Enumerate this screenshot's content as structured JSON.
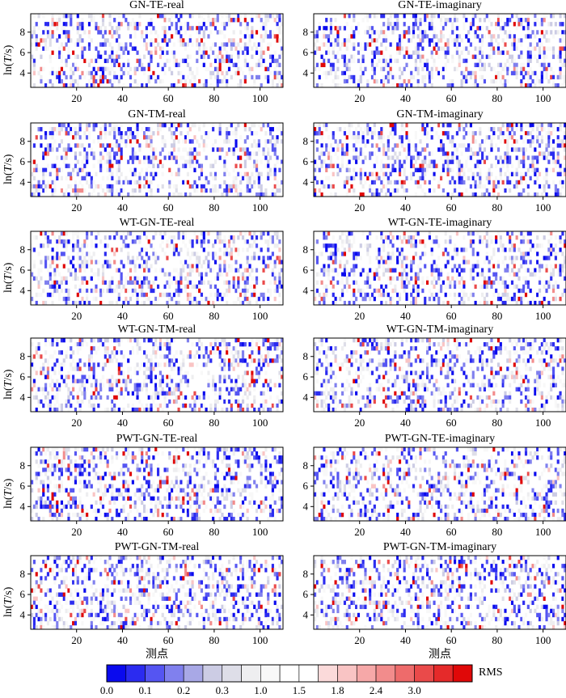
{
  "chart_data": [
    {
      "type": "heatmap",
      "title": "GN-TE-real",
      "xlim": [
        0,
        110
      ],
      "ylim": [
        2.6,
        9.8
      ],
      "xticks": [
        "20",
        "40",
        "60",
        "80",
        "100"
      ],
      "yticks": [
        "4",
        "6",
        "8"
      ],
      "ylabel": "ln(T/s)",
      "seed": 11
    },
    {
      "type": "heatmap",
      "title": "GN-TE-imaginary",
      "xlim": [
        0,
        110
      ],
      "ylim": [
        2.6,
        9.8
      ],
      "xticks": [
        "20",
        "40",
        "60",
        "80",
        "100"
      ],
      "yticks": [
        "4",
        "6",
        "8"
      ],
      "seed": 23
    },
    {
      "type": "heatmap",
      "title": "GN-TM-real",
      "xlim": [
        0,
        110
      ],
      "ylim": [
        2.6,
        9.8
      ],
      "xticks": [
        "20",
        "40",
        "60",
        "80",
        "100"
      ],
      "yticks": [
        "4",
        "6",
        "8"
      ],
      "ylabel": "ln(T/s)",
      "seed": 37
    },
    {
      "type": "heatmap",
      "title": "GN-TM-imaginary",
      "xlim": [
        0,
        110
      ],
      "ylim": [
        2.6,
        9.8
      ],
      "xticks": [
        "20",
        "40",
        "60",
        "80",
        "100"
      ],
      "yticks": [
        "4",
        "6",
        "8"
      ],
      "seed": 41
    },
    {
      "type": "heatmap",
      "title": "WT-GN-TE-real",
      "xlim": [
        0,
        110
      ],
      "ylim": [
        2.6,
        9.8
      ],
      "xticks": [
        "20",
        "40",
        "60",
        "80",
        "100"
      ],
      "yticks": [
        "4",
        "6",
        "8"
      ],
      "ylabel": "ln(T/s)",
      "seed": 53
    },
    {
      "type": "heatmap",
      "title": "WT-GN-TE-imaginary",
      "xlim": [
        0,
        110
      ],
      "ylim": [
        2.6,
        9.8
      ],
      "xticks": [
        "20",
        "40",
        "60",
        "80",
        "100"
      ],
      "yticks": [
        "4",
        "6",
        "8"
      ],
      "seed": 67
    },
    {
      "type": "heatmap",
      "title": "WT-GN-TM-real",
      "xlim": [
        0,
        110
      ],
      "ylim": [
        2.6,
        9.8
      ],
      "xticks": [
        "20",
        "40",
        "60",
        "80",
        "100"
      ],
      "yticks": [
        "4",
        "6",
        "8"
      ],
      "ylabel": "ln(T/s)",
      "seed": 71
    },
    {
      "type": "heatmap",
      "title": "WT-GN-TM-imaginary",
      "xlim": [
        0,
        110
      ],
      "ylim": [
        2.6,
        9.8
      ],
      "xticks": [
        "20",
        "40",
        "60",
        "80",
        "100"
      ],
      "yticks": [
        "4",
        "6",
        "8"
      ],
      "seed": 83
    },
    {
      "type": "heatmap",
      "title": "PWT-GN-TE-real",
      "xlim": [
        0,
        110
      ],
      "ylim": [
        2.6,
        9.8
      ],
      "xticks": [
        "20",
        "40",
        "60",
        "80",
        "100"
      ],
      "yticks": [
        "4",
        "6",
        "8"
      ],
      "ylabel": "ln(T/s)",
      "seed": 97
    },
    {
      "type": "heatmap",
      "title": "PWT-GN-TE-imaginary",
      "xlim": [
        0,
        110
      ],
      "ylim": [
        2.6,
        9.8
      ],
      "xticks": [
        "20",
        "40",
        "60",
        "80",
        "100"
      ],
      "yticks": [
        "4",
        "6",
        "8"
      ],
      "seed": 101
    },
    {
      "type": "heatmap",
      "title": "PWT-GN-TM-real",
      "xlim": [
        0,
        110
      ],
      "ylim": [
        2.6,
        9.8
      ],
      "xticks": [
        "20",
        "40",
        "60",
        "80",
        "100"
      ],
      "yticks": [
        "4",
        "6",
        "8"
      ],
      "ylabel": "ln(T/s)",
      "xlabel": "测点",
      "seed": 113
    },
    {
      "type": "heatmap",
      "title": "PWT-GN-TM-imaginary",
      "xlim": [
        0,
        110
      ],
      "ylim": [
        2.6,
        9.8
      ],
      "xticks": [
        "20",
        "40",
        "60",
        "80",
        "100"
      ],
      "yticks": [
        "4",
        "6",
        "8"
      ],
      "xlabel": "测点",
      "seed": 127
    }
  ],
  "colorbar": {
    "label": "RMS",
    "tick_labels": [
      "0.0",
      "0.1",
      "0.2",
      "0.3",
      "1.0",
      "1.5",
      "1.8",
      "2.4",
      "3.0"
    ],
    "colors": [
      "#0a0aee",
      "#2b2bf0",
      "#5555f2",
      "#8080ee",
      "#a8a8e6",
      "#cccce4",
      "#dedee8",
      "#eeeef0",
      "#f8f8f8",
      "#ffffff",
      "#ffffff",
      "#fbdada",
      "#f9c4c4",
      "#f6a8a8",
      "#f28c8c",
      "#ee6b6b",
      "#ea4a4a",
      "#e52a2a",
      "#e00808"
    ]
  }
}
